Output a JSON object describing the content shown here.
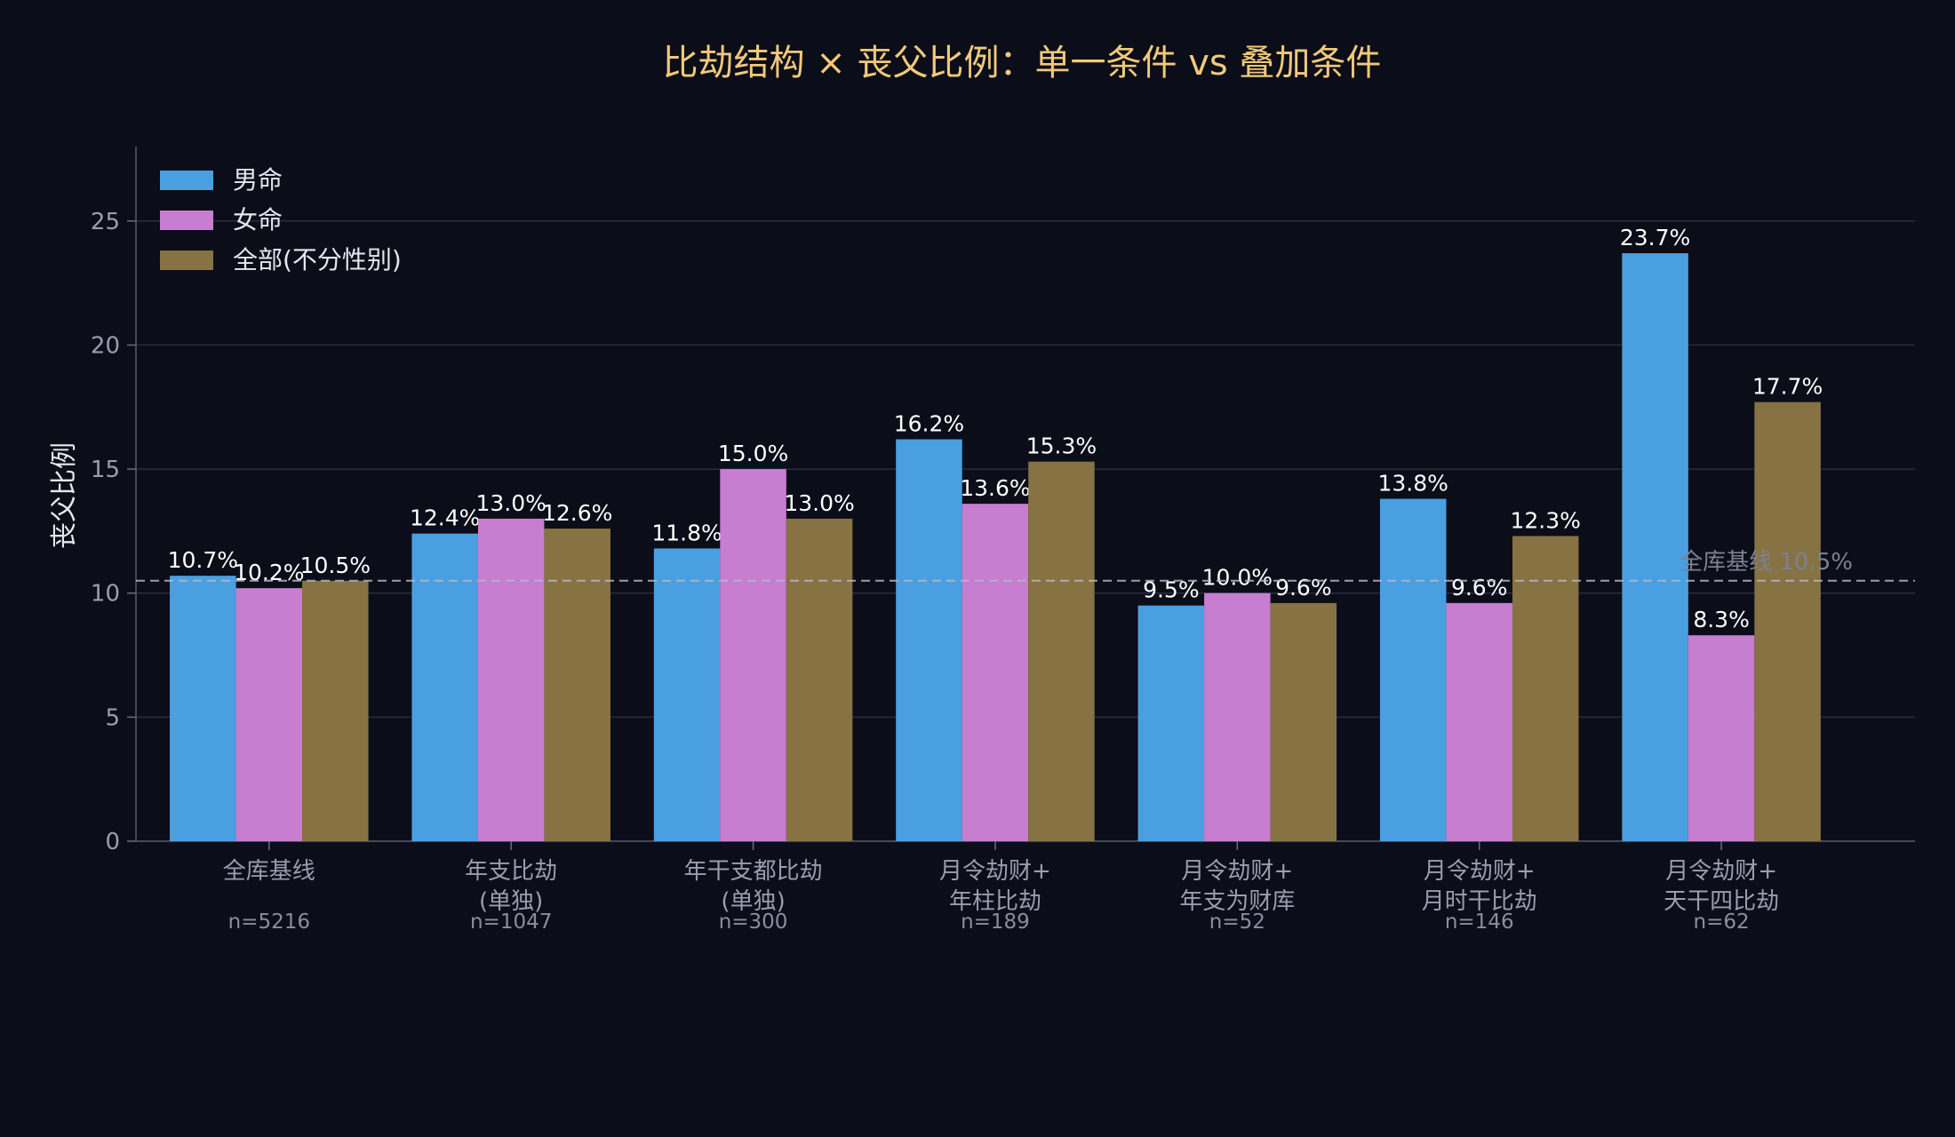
{
  "chart_data": {
    "type": "bar",
    "title": "比劫结构 × 丧父比例：单一条件 vs 叠加条件",
    "xlabel": "",
    "ylabel": "丧父比例",
    "ylim": [
      0,
      28
    ],
    "yticks": [
      0,
      5,
      10,
      15,
      20,
      25
    ],
    "grid": true,
    "legend_position": "top-left",
    "categories": [
      [
        "全库基线"
      ],
      [
        "年支比劫",
        "(单独)"
      ],
      [
        "年干支都比劫",
        "(单独)"
      ],
      [
        "月令劫财+",
        "年柱比劫"
      ],
      [
        "月令劫财+",
        "年支为财库"
      ],
      [
        "月令劫财+",
        "月时干比劫"
      ],
      [
        "月令劫财+",
        "天干四比劫"
      ]
    ],
    "sample_sizes": [
      "n=5216",
      "n=1047",
      "n=300",
      "n=189",
      "n=52",
      "n=146",
      "n=62"
    ],
    "series": [
      {
        "name": "男命",
        "color": "#4a9fe0",
        "values": [
          10.7,
          12.4,
          11.8,
          16.2,
          9.5,
          13.8,
          23.7
        ],
        "labels": [
          "10.7%",
          "12.4%",
          "11.8%",
          "16.2%",
          "9.5%",
          "13.8%",
          "23.7%"
        ]
      },
      {
        "name": "女命",
        "color": "#c77dd0",
        "values": [
          10.2,
          13.0,
          15.0,
          13.6,
          10.0,
          9.6,
          8.3
        ],
        "labels": [
          "10.2%",
          "13.0%",
          "15.0%",
          "13.6%",
          "10.0%",
          "9.6%",
          "8.3%"
        ]
      },
      {
        "name": "全部(不分性别)",
        "color": "#877243",
        "values": [
          10.5,
          12.6,
          13.0,
          15.3,
          9.6,
          12.3,
          17.7
        ],
        "labels": [
          "10.5%",
          "12.6%",
          "13.0%",
          "15.3%",
          "9.6%",
          "12.3%",
          "17.7%"
        ]
      }
    ],
    "reference_line": {
      "value": 10.5,
      "label": "全库基线 10.5%"
    }
  }
}
